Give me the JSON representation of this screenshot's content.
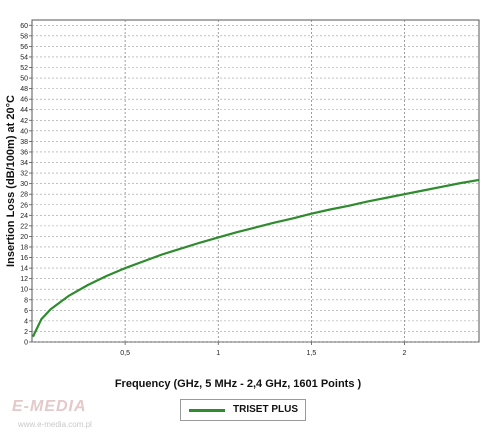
{
  "chart_data": {
    "type": "line",
    "title": "",
    "xlabel": "Frequency (GHz, 5 MHz - 2,4 GHz, 1601 Points )",
    "ylabel": "Insertion Loss (dB/100m) at 20°C",
    "xlim": [
      0.0,
      2.4
    ],
    "ylim": [
      0,
      61
    ],
    "x_ticks": [
      0.5,
      1,
      1.5,
      2
    ],
    "x_tick_labels": [
      "0,5",
      "1",
      "1,5",
      "2"
    ],
    "y_ticks": [
      0,
      2,
      4,
      6,
      8,
      10,
      12,
      14,
      16,
      18,
      20,
      22,
      24,
      26,
      28,
      30,
      32,
      34,
      36,
      38,
      40,
      42,
      44,
      46,
      48,
      50,
      52,
      54,
      56,
      58,
      60
    ],
    "grid": true,
    "legend_position": "bottom-center",
    "series": [
      {
        "name": "TRISET PLUS",
        "color": "#2e8b2e",
        "x": [
          0.005,
          0.05,
          0.1,
          0.2,
          0.3,
          0.4,
          0.5,
          0.6,
          0.7,
          0.8,
          0.9,
          1.0,
          1.1,
          1.2,
          1.3,
          1.4,
          1.5,
          1.6,
          1.7,
          1.8,
          1.9,
          2.0,
          2.1,
          2.2,
          2.3,
          2.4
        ],
        "y": [
          1.0,
          4.3,
          6.2,
          8.8,
          10.8,
          12.5,
          14.0,
          15.3,
          16.6,
          17.7,
          18.8,
          19.8,
          20.8,
          21.7,
          22.6,
          23.4,
          24.3,
          25.1,
          25.8,
          26.6,
          27.3,
          28.0,
          28.7,
          29.4,
          30.1,
          30.7
        ]
      }
    ]
  },
  "watermark": {
    "logo": "E-MEDIA",
    "url": "www.e-media.com.pl"
  }
}
